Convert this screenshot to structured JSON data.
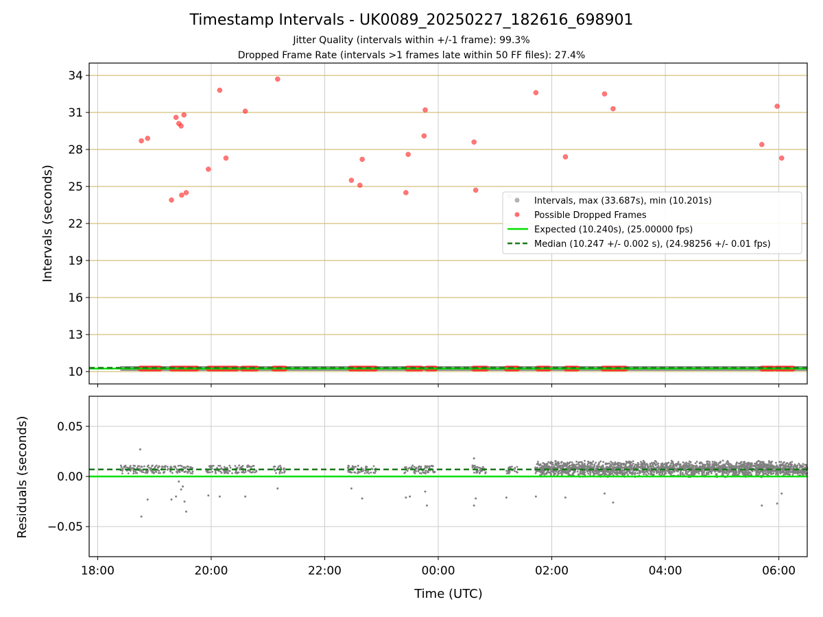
{
  "colors": {
    "expected": "#00e000",
    "median": "#1a7a1a",
    "intervals": "#808080",
    "dropped": "#ff3030",
    "grid_interval_lines": "#d4bf7a",
    "grid": "#cccccc"
  },
  "chart_data": [
    {
      "type": "scatter",
      "title": "Timestamp Intervals - UK0089_20250227_182616_698901",
      "subtitle_lines": [
        "Jitter Quality (intervals within +/-1 frame): 99.3%",
        "Dropped Frame Rate (intervals >1 frames late within 50 FF files): 27.4%"
      ],
      "ylabel": "Intervals (seconds)",
      "ylim": [
        9,
        35
      ],
      "yticks": [
        10,
        13,
        16,
        19,
        22,
        25,
        28,
        31,
        34
      ],
      "ytick_labels": [
        "10",
        "13",
        "16",
        "19",
        "22",
        "25",
        "28",
        "31",
        "34"
      ],
      "grid": true,
      "legend_position": "center-right",
      "legend": [
        "Intervals, max (33.687s), min (10.201s)",
        "Possible Dropped Frames",
        "Expected (10.240s), (25.00000 fps)",
        "Median (10.247 +/- 0.002 s), (24.98256 +/- 0.01 fps)"
      ],
      "expected_interval": 10.24,
      "median_interval": 10.247,
      "x_units": "hours since 18:00 UTC",
      "dropped_frames": [
        [
          0.77,
          28.7
        ],
        [
          0.88,
          28.9
        ],
        [
          1.3,
          23.9
        ],
        [
          1.38,
          30.6
        ],
        [
          1.43,
          30.1
        ],
        [
          1.47,
          29.9
        ],
        [
          1.48,
          24.3
        ],
        [
          1.52,
          30.8
        ],
        [
          1.56,
          24.5
        ],
        [
          1.95,
          26.4
        ],
        [
          2.15,
          32.8
        ],
        [
          2.26,
          27.3
        ],
        [
          2.6,
          31.1
        ],
        [
          3.17,
          33.7
        ],
        [
          4.47,
          25.5
        ],
        [
          4.62,
          25.1
        ],
        [
          4.66,
          27.2
        ],
        [
          5.43,
          24.5
        ],
        [
          5.47,
          27.6
        ],
        [
          5.75,
          29.1
        ],
        [
          5.77,
          31.2
        ],
        [
          6.63,
          28.6
        ],
        [
          6.66,
          24.7
        ],
        [
          7.72,
          32.6
        ],
        [
          8.24,
          27.4
        ],
        [
          8.93,
          32.5
        ],
        [
          9.08,
          31.3
        ],
        [
          11.7,
          28.4
        ],
        [
          11.97,
          31.5
        ],
        [
          12.05,
          27.3
        ]
      ],
      "dropped_bands": [
        [
          0.75,
          1.1
        ],
        [
          1.3,
          1.75
        ],
        [
          1.95,
          2.45
        ],
        [
          2.55,
          2.8
        ],
        [
          3.1,
          3.3
        ],
        [
          4.45,
          4.9
        ],
        [
          5.45,
          5.7
        ],
        [
          5.8,
          5.95
        ],
        [
          6.62,
          6.85
        ],
        [
          7.2,
          7.4
        ],
        [
          7.75,
          7.95
        ],
        [
          8.25,
          8.45
        ],
        [
          8.9,
          9.3
        ],
        [
          11.7,
          11.9
        ],
        [
          11.95,
          12.25
        ]
      ]
    },
    {
      "type": "scatter",
      "ylabel": "Residuals (seconds)",
      "xlabel": "Time (UTC)",
      "ylim": [
        -0.08,
        0.08
      ],
      "yticks": [
        0.05,
        0.0,
        -0.05
      ],
      "ytick_labels": [
        "0.05",
        "0.00",
        "−0.05"
      ],
      "x_ticks": [
        0,
        2,
        4,
        6,
        8,
        10,
        12
      ],
      "x_tick_labels": [
        "18:00",
        "20:00",
        "22:00",
        "00:00",
        "02:00",
        "04:00",
        "06:00"
      ],
      "xlim": [
        -0.15,
        12.5
      ],
      "grid": true,
      "expected_residual": 0.0,
      "median_residual": 0.007,
      "dense_region": [
        7.7,
        12.5
      ],
      "outliers": [
        [
          0.75,
          0.027
        ],
        [
          0.77,
          -0.04
        ],
        [
          0.88,
          -0.023
        ],
        [
          1.3,
          -0.023
        ],
        [
          1.38,
          -0.02
        ],
        [
          1.43,
          -0.005
        ],
        [
          1.47,
          -0.013
        ],
        [
          1.5,
          -0.01
        ],
        [
          1.53,
          -0.025
        ],
        [
          1.56,
          -0.035
        ],
        [
          1.95,
          -0.019
        ],
        [
          2.15,
          -0.02
        ],
        [
          2.6,
          -0.02
        ],
        [
          3.17,
          -0.012
        ],
        [
          4.47,
          -0.012
        ],
        [
          4.66,
          -0.022
        ],
        [
          5.43,
          -0.021
        ],
        [
          5.5,
          -0.02
        ],
        [
          5.77,
          -0.015
        ],
        [
          5.8,
          -0.029
        ],
        [
          6.63,
          0.018
        ],
        [
          6.63,
          -0.029
        ],
        [
          6.66,
          -0.022
        ],
        [
          7.2,
          -0.021
        ],
        [
          7.72,
          -0.02
        ],
        [
          8.24,
          -0.021
        ],
        [
          8.93,
          -0.017
        ],
        [
          9.08,
          -0.026
        ],
        [
          11.7,
          -0.029
        ],
        [
          11.97,
          -0.027
        ],
        [
          12.05,
          -0.017
        ]
      ]
    }
  ]
}
